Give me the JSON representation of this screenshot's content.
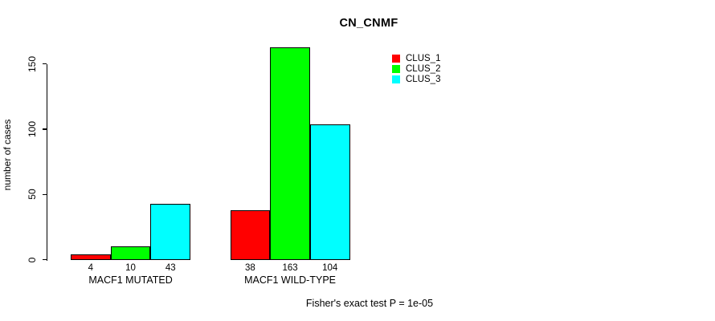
{
  "chart_data": {
    "type": "bar",
    "title": "CN_CNMF",
    "xlabel": "",
    "ylabel": "number of cases",
    "categories": [
      "MACF1 MUTATED",
      "MACF1 WILD-TYPE"
    ],
    "series": [
      {
        "name": "CLUS_1",
        "color": "#FF0000",
        "values": [
          4,
          38
        ]
      },
      {
        "name": "CLUS_2",
        "color": "#00FF00",
        "values": [
          10,
          163
        ]
      },
      {
        "name": "CLUS_3",
        "color": "#00FFFF",
        "values": [
          43,
          104
        ]
      }
    ],
    "yticks": [
      0,
      50,
      100,
      150
    ],
    "ylim": [
      0,
      165
    ],
    "grid": false,
    "bar_value_labels_shown": true,
    "legend_position": "top-right",
    "annotation": "Fisher's exact test P = 1e-05"
  }
}
